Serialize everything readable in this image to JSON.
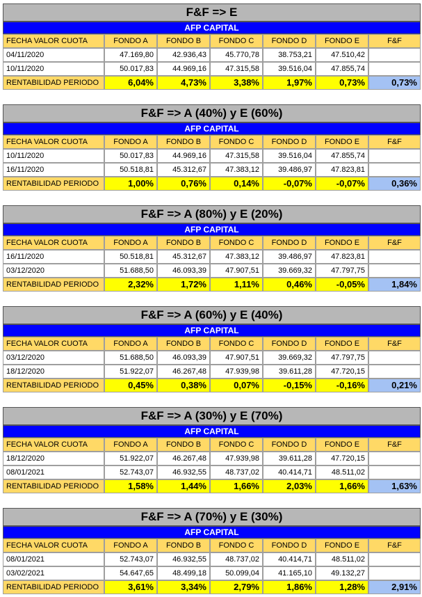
{
  "blocks": [
    {
      "title": "F&F => E",
      "subtitle": "AFP CAPITAL",
      "header": [
        "FECHA VALOR CUOTA",
        "FONDO A",
        "FONDO B",
        "FONDO C",
        "FONDO D",
        "FONDO E",
        "F&F"
      ],
      "rows": [
        [
          "04/11/2020",
          "47.169,80",
          "42.936,43",
          "45.770,78",
          "38.753,21",
          "47.510,42"
        ],
        [
          "10/11/2020",
          "50.017,83",
          "44.969,16",
          "47.315,58",
          "39.516,04",
          "47.855,74"
        ]
      ],
      "result": [
        "RENTABILIDAD PERIODO",
        "6,04%",
        "4,73%",
        "3,38%",
        "1,97%",
        "0,73%",
        "0,73%"
      ]
    },
    {
      "title": "F&F => A (40%) y E (60%)",
      "subtitle": "AFP CAPITAL",
      "header": [
        "FECHA VALOR CUOTA",
        "FONDO A",
        "FONDO B",
        "FONDO C",
        "FONDO D",
        "FONDO E",
        "F&F"
      ],
      "rows": [
        [
          "10/11/2020",
          "50.017,83",
          "44.969,16",
          "47.315,58",
          "39.516,04",
          "47.855,74"
        ],
        [
          "16/11/2020",
          "50.518,81",
          "45.312,67",
          "47.383,12",
          "39.486,97",
          "47.823,81"
        ]
      ],
      "result": [
        "RENTABILIDAD PERIODO",
        "1,00%",
        "0,76%",
        "0,14%",
        "-0,07%",
        "-0,07%",
        "0,36%"
      ]
    },
    {
      "title": "F&F => A (80%) y E (20%)",
      "subtitle": "AFP CAPITAL",
      "header": [
        "FECHA VALOR CUOTA",
        "FONDO A",
        "FONDO B",
        "FONDO C",
        "FONDO D",
        "FONDO E",
        "F&F"
      ],
      "rows": [
        [
          "16/11/2020",
          "50.518,81",
          "45.312,67",
          "47.383,12",
          "39.486,97",
          "47.823,81"
        ],
        [
          "03/12/2020",
          "51.688,50",
          "46.093,39",
          "47.907,51",
          "39.669,32",
          "47.797,75"
        ]
      ],
      "result": [
        "RENTABILIDAD PERIODO",
        "2,32%",
        "1,72%",
        "1,11%",
        "0,46%",
        "-0,05%",
        "1,84%"
      ]
    },
    {
      "title": "F&F => A (60%) y E (40%)",
      "subtitle": "AFP CAPITAL",
      "header": [
        "FECHA VALOR CUOTA",
        "FONDO A",
        "FONDO B",
        "FONDO C",
        "FONDO D",
        "FONDO E",
        "F&F"
      ],
      "rows": [
        [
          "03/12/2020",
          "51.688,50",
          "46.093,39",
          "47.907,51",
          "39.669,32",
          "47.797,75"
        ],
        [
          "18/12/2020",
          "51.922,07",
          "46.267,48",
          "47.939,98",
          "39.611,28",
          "47.720,15"
        ]
      ],
      "result": [
        "RENTABILIDAD PERIODO",
        "0,45%",
        "0,38%",
        "0,07%",
        "-0,15%",
        "-0,16%",
        "0,21%"
      ]
    },
    {
      "title": "F&F => A (30%) y E (70%)",
      "subtitle": "AFP CAPITAL",
      "header": [
        "FECHA VALOR CUOTA",
        "FONDO A",
        "FONDO B",
        "FONDO C",
        "FONDO D",
        "FONDO E",
        "F&F"
      ],
      "rows": [
        [
          "18/12/2020",
          "51.922,07",
          "46.267,48",
          "47.939,98",
          "39.611,28",
          "47.720,15"
        ],
        [
          "08/01/2021",
          "52.743,07",
          "46.932,55",
          "48.737,02",
          "40.414,71",
          "48.511,02"
        ]
      ],
      "result": [
        "RENTABILIDAD PERIODO",
        "1,58%",
        "1,44%",
        "1,66%",
        "2,03%",
        "1,66%",
        "1,63%"
      ]
    },
    {
      "title": "F&F => A (70%) y E (30%)",
      "subtitle": "AFP CAPITAL",
      "header": [
        "FECHA VALOR CUOTA",
        "FONDO A",
        "FONDO B",
        "FONDO C",
        "FONDO D",
        "FONDO E",
        "F&F"
      ],
      "rows": [
        [
          "08/01/2021",
          "52.743,07",
          "46.932,55",
          "48.737,02",
          "40.414,71",
          "48.511,02"
        ],
        [
          "03/02/2021",
          "54.647,65",
          "48.499,18",
          "50.099,04",
          "41.165,10",
          "49.132,27"
        ]
      ],
      "result": [
        "RENTABILIDAD PERIODO",
        "3,61%",
        "3,34%",
        "2,79%",
        "1,86%",
        "1,28%",
        "2,91%"
      ]
    }
  ]
}
